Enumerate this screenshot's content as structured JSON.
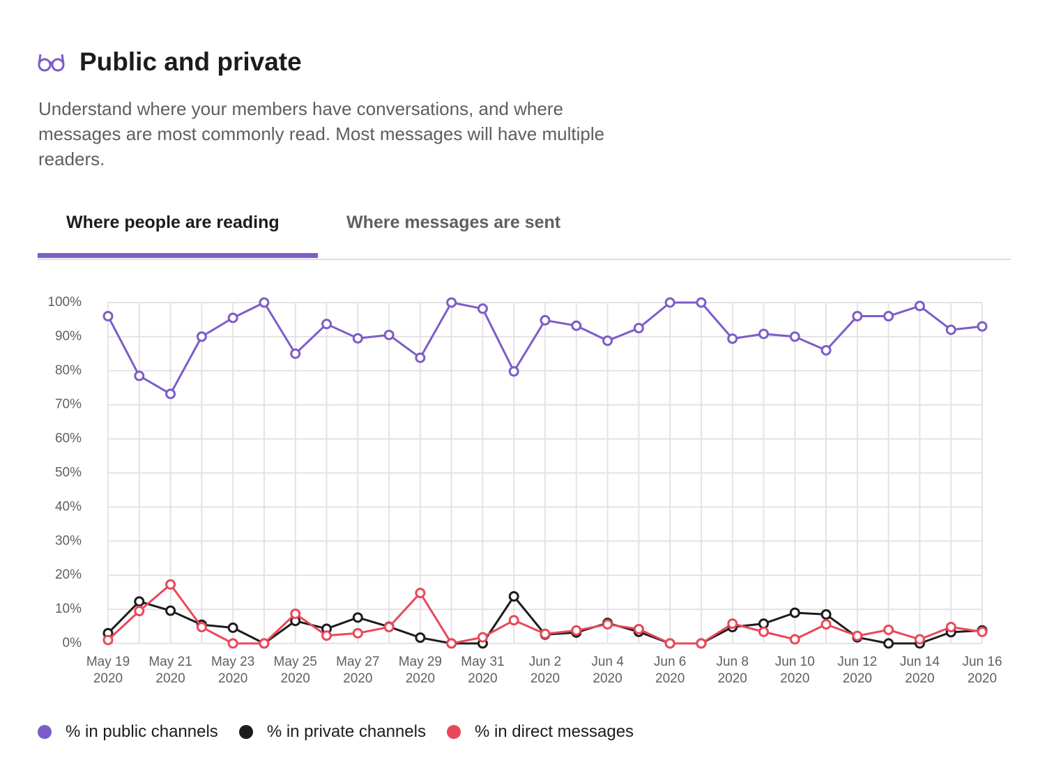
{
  "header": {
    "title": "Public and private",
    "description": "Understand where your members have conversations, and where messages are most commonly read. Most messages will have multiple readers."
  },
  "tabs": [
    {
      "label": "Where people are reading",
      "active": true
    },
    {
      "label": "Where messages are sent",
      "active": false
    }
  ],
  "chart_data": {
    "type": "line",
    "categories": [
      "May 19\n2020",
      null,
      "May 21\n2020",
      null,
      "May 23\n2020",
      null,
      "May 25\n2020",
      null,
      "May 27\n2020",
      null,
      "May 29\n2020",
      null,
      "May 31\n2020",
      null,
      "Jun 2\n2020",
      null,
      "Jun 4\n2020",
      null,
      "Jun 6\n2020",
      null,
      "Jun 8\n2020",
      null,
      "Jun 10\n2020",
      null,
      "Jun 12\n2020",
      null,
      "Jun 14\n2020",
      null,
      "Jun 16\n2020"
    ],
    "series": [
      {
        "name": "% in public channels",
        "color": "#7c5cc9",
        "values": [
          96,
          78.5,
          73.2,
          90,
          95.5,
          100,
          85,
          93.7,
          89.5,
          90.5,
          83.8,
          100,
          98.2,
          79.8,
          94.8,
          93.2,
          88.8,
          92.5,
          100,
          100,
          89.4,
          90.8,
          90,
          86,
          96,
          96,
          99,
          92,
          93
        ]
      },
      {
        "name": "% in private channels",
        "color": "#1d1c1d",
        "values": [
          3,
          12.3,
          9.6,
          5.5,
          4.6,
          0,
          6.6,
          4.3,
          7.6,
          4.9,
          1.7,
          0,
          0,
          13.8,
          2.6,
          3.2,
          6,
          3.4,
          0,
          0,
          4.8,
          5.8,
          9,
          8.5,
          1.8,
          0,
          0,
          3.3,
          3.8
        ]
      },
      {
        "name": "% in direct messages",
        "color": "#e8485a",
        "values": [
          1,
          9.5,
          17.3,
          4.8,
          0,
          0,
          8.7,
          2.3,
          3,
          4.8,
          14.8,
          0,
          1.8,
          6.8,
          2.8,
          3.8,
          5.6,
          4.2,
          0,
          0,
          5.8,
          3.4,
          1.2,
          5.6,
          2.2,
          4,
          1.2,
          4.8,
          3.4
        ]
      }
    ],
    "ylim": [
      0,
      100
    ],
    "yticks": [
      {
        "value": 0,
        "label": "0%"
      },
      {
        "value": 10,
        "label": "10%"
      },
      {
        "value": 20,
        "label": "20%"
      },
      {
        "value": 30,
        "label": "30%"
      },
      {
        "value": 40,
        "label": "40%"
      },
      {
        "value": 50,
        "label": "50%"
      },
      {
        "value": 60,
        "label": "60%"
      },
      {
        "value": 70,
        "label": "70%"
      },
      {
        "value": 80,
        "label": "80%"
      },
      {
        "value": 90,
        "label": "90%"
      },
      {
        "value": 100,
        "label": "100%"
      }
    ],
    "grid": true
  }
}
